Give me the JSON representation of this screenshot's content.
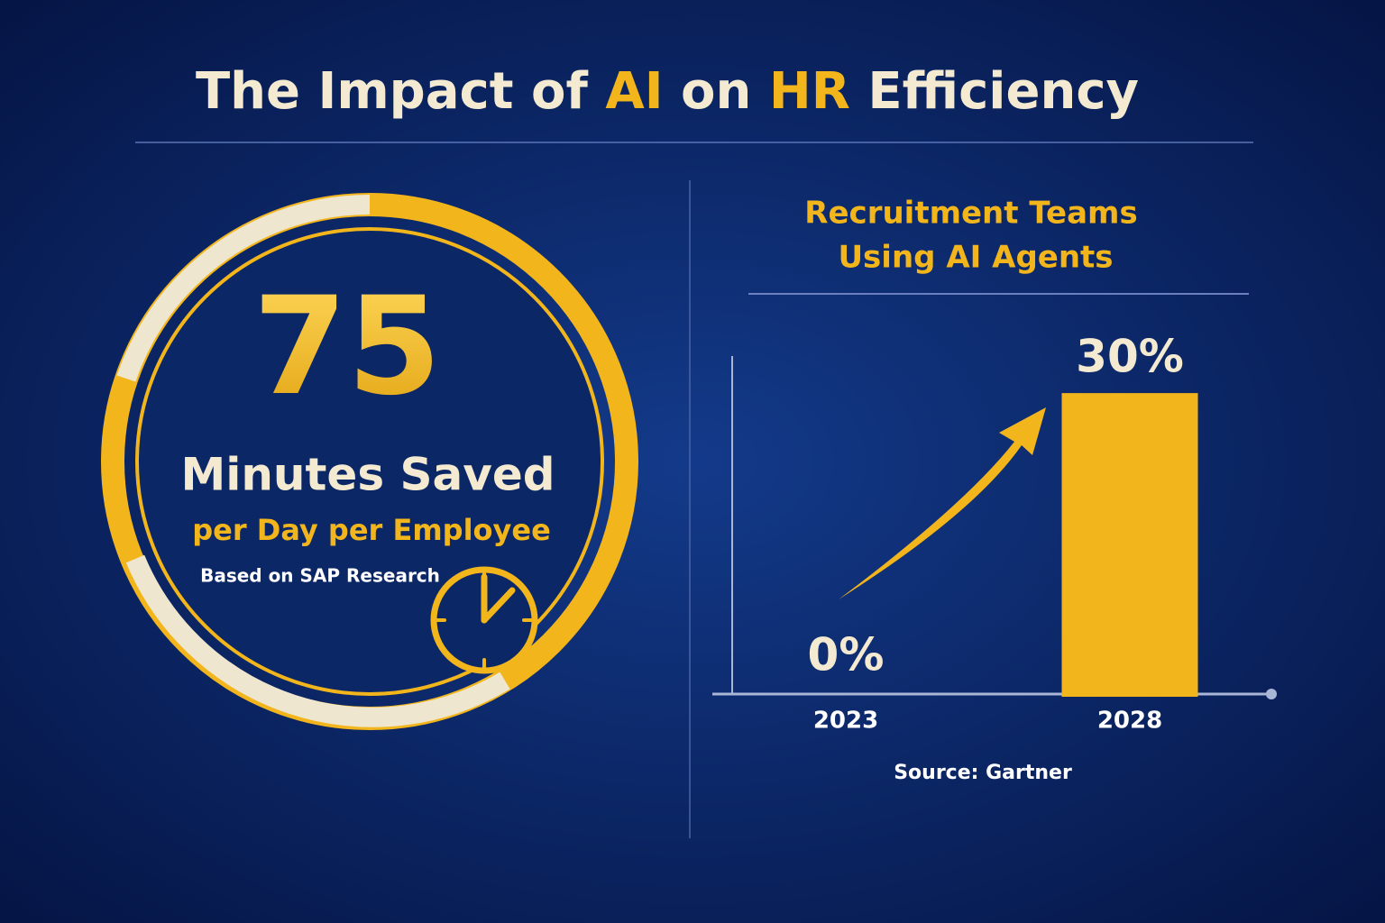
{
  "title": {
    "parts": [
      {
        "text": "The Impact of ",
        "color": "#f4ead2"
      },
      {
        "text": "AI",
        "color": "#f2b51c"
      },
      {
        "text": " on ",
        "color": "#f4ead2"
      },
      {
        "text": "HR",
        "color": "#f2b51c"
      },
      {
        "text": " Efficiency",
        "color": "#f4ead2"
      }
    ]
  },
  "stat": {
    "value": 75,
    "unit": "Minutes Saved",
    "detail": "per Day per Employee",
    "source": "Based on SAP Research"
  },
  "chart_data": {
    "type": "bar",
    "title": [
      "Recruitment Teams",
      "Using AI Agents"
    ],
    "categories": [
      "2023",
      "2028"
    ],
    "values": [
      0,
      30
    ],
    "value_labels": [
      "0%",
      "30%"
    ],
    "colors": [
      "#1f4fb8",
      "#f2b51c"
    ],
    "ylim": [
      0,
      34
    ],
    "source": "Source: Gartner"
  }
}
